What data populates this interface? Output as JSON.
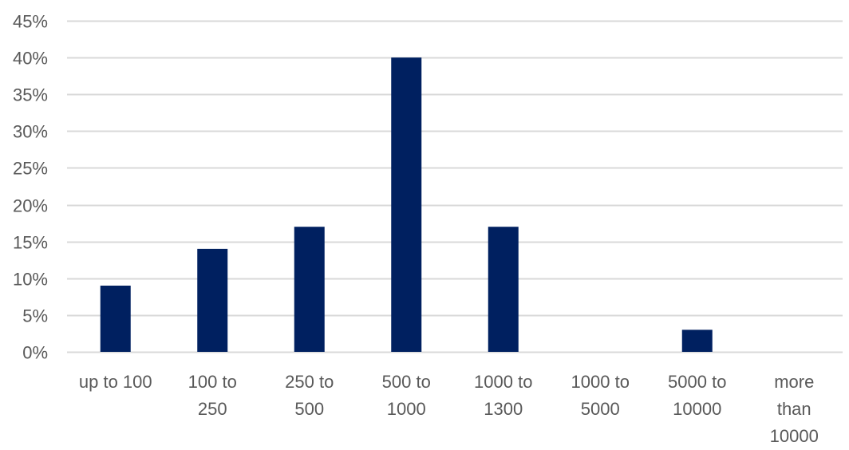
{
  "chart_data": {
    "type": "bar",
    "title": "",
    "xlabel": "",
    "ylabel": "",
    "categories": [
      "up to 100",
      "100 to 250",
      "250 to 500",
      "500 to 1000",
      "1000 to 1300",
      "1000 to 5000",
      "5000 to 10000",
      "more than 10000"
    ],
    "category_lines": [
      [
        "up to 100"
      ],
      [
        "100 to",
        "250"
      ],
      [
        "250 to",
        "500"
      ],
      [
        "500 to",
        "1000"
      ],
      [
        "1000 to",
        "1300"
      ],
      [
        "1000 to",
        "5000"
      ],
      [
        "5000 to",
        "10000"
      ],
      [
        "more",
        "than",
        "10000"
      ]
    ],
    "values": [
      0.09,
      0.14,
      0.17,
      0.4,
      0.17,
      0,
      0.03,
      0
    ],
    "ylim": [
      0,
      0.45
    ],
    "y_ticks": [
      0,
      0.05,
      0.1,
      0.15,
      0.2,
      0.25,
      0.3,
      0.35,
      0.4,
      0.45
    ],
    "y_tick_labels": [
      "0%",
      "5%",
      "10%",
      "15%",
      "20%",
      "25%",
      "30%",
      "35%",
      "40%",
      "45%"
    ],
    "grid": true,
    "legend": "none",
    "bar_color": "#002060",
    "grid_color": "#d9d9d9",
    "text_color": "#595959"
  }
}
